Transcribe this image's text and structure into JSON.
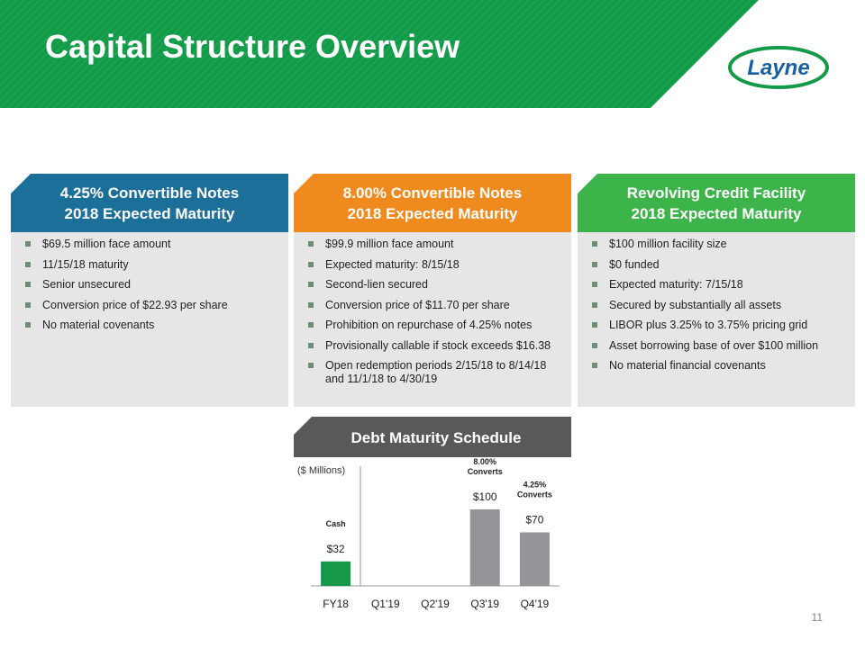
{
  "header": {
    "title": "Capital Structure Overview",
    "logo": "Layne"
  },
  "panels": [
    {
      "title": [
        "4.25% Convertible Notes",
        "2018 Expected Maturity"
      ],
      "color": "#1b6f99",
      "bullets": [
        "$69.5 million face amount",
        "11/15/18 maturity",
        "Senior unsecured",
        "Conversion price of $22.93 per share",
        "No material covenants"
      ]
    },
    {
      "title": [
        "8.00% Convertible Notes",
        "2018 Expected Maturity"
      ],
      "color": "#ef8a1f",
      "bullets": [
        "$99.9 million face amount",
        "Expected maturity:  8/15/18",
        "Second-lien secured",
        "Conversion price of $11.70 per share",
        "Prohibition on repurchase of 4.25% notes",
        "Provisionally  callable if stock exceeds $16.38",
        "Open redemption periods 2/15/18 to 8/14/18 and 11/1/18 to 4/30/19"
      ]
    },
    {
      "title": [
        "Revolving Credit Facility",
        "2018 Expected Maturity"
      ],
      "color": "#3cb44a",
      "bullets": [
        "$100 million facility size",
        "$0 funded",
        "Expected maturity:  7/15/18",
        "Secured by substantially  all assets",
        "LIBOR plus 3.25% to 3.75% pricing grid",
        "Asset  borrowing base of over $100 million",
        "No material financial covenants"
      ]
    }
  ],
  "chart_data": {
    "type": "bar",
    "title": "Debt Maturity Schedule",
    "unit_label": "($ Millions)",
    "categories": [
      "FY18",
      "Q1'19",
      "Q2'19",
      "Q3'19",
      "Q4'19"
    ],
    "values": [
      32,
      null,
      null,
      100,
      70
    ],
    "value_labels": [
      "$32",
      null,
      null,
      "$100",
      "$70"
    ],
    "colors": [
      "#14994a",
      "#939598",
      "#939598",
      "#939598",
      "#939598"
    ],
    "annotations": [
      [
        "Cash"
      ],
      null,
      null,
      [
        "8.00%",
        "Converts"
      ],
      [
        "4.25%",
        "Converts"
      ]
    ]
  },
  "page_number": "11"
}
